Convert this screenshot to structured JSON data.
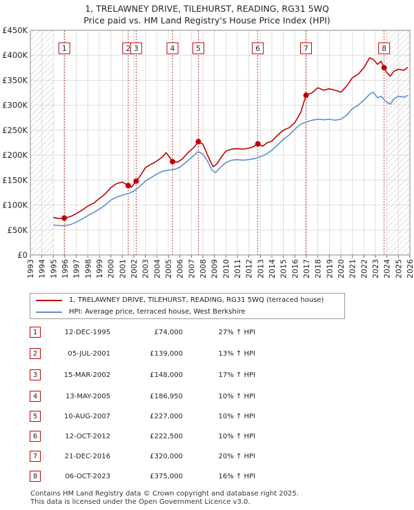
{
  "title": {
    "line1": "1, TRELAWNEY DRIVE, TILEHURST, READING, RG31 5WQ",
    "line2": "Price paid vs. HM Land Registry's House Price Index (HPI)"
  },
  "colors": {
    "property": "#c00000",
    "hpi": "#5b8fc9",
    "shade": "#e8eef6",
    "hatch": "#bbbbbb",
    "grid": "#dddddd"
  },
  "chart_data": {
    "type": "line",
    "x_range": [
      1993,
      2026
    ],
    "y_range": [
      0,
      450000
    ],
    "y_ticks": [
      0,
      50000,
      100000,
      150000,
      200000,
      250000,
      300000,
      350000,
      400000,
      450000
    ],
    "y_tick_labels": [
      "£0",
      "£50K",
      "£100K",
      "£150K",
      "£200K",
      "£250K",
      "£300K",
      "£350K",
      "£400K",
      "£450K"
    ],
    "x_tick_labels": [
      "1993",
      "1994",
      "1995",
      "1996",
      "1997",
      "1998",
      "1999",
      "2000",
      "2001",
      "2002",
      "2003",
      "2004",
      "2005",
      "2006",
      "2007",
      "2008",
      "2009",
      "2010",
      "2011",
      "2012",
      "2013",
      "2014",
      "2015",
      "2016",
      "2017",
      "2018",
      "2019",
      "2020",
      "2021",
      "2022",
      "2023",
      "2024",
      "2025",
      "2026"
    ],
    "hatched_before": 1995.0,
    "hatched_after": 2024.0,
    "series": [
      {
        "name": "1, TRELAWNEY DRIVE, TILEHURST, READING, RG31 5WQ (terraced house)",
        "color": "#c00000",
        "points": [
          [
            1995.0,
            75000
          ],
          [
            1995.5,
            73000
          ],
          [
            1995.95,
            74000
          ],
          [
            1996.5,
            77000
          ],
          [
            1997.0,
            83000
          ],
          [
            1997.5,
            90000
          ],
          [
            1998.0,
            98000
          ],
          [
            1998.5,
            104000
          ],
          [
            1999.0,
            113000
          ],
          [
            1999.5,
            122000
          ],
          [
            2000.0,
            135000
          ],
          [
            2000.5,
            143000
          ],
          [
            2001.0,
            146000
          ],
          [
            2001.5,
            140000
          ],
          [
            2001.8,
            136000
          ],
          [
            2002.2,
            148000
          ],
          [
            2002.6,
            160000
          ],
          [
            2003.0,
            175000
          ],
          [
            2003.5,
            182000
          ],
          [
            2004.0,
            188000
          ],
          [
            2004.5,
            197000
          ],
          [
            2004.8,
            205000
          ],
          [
            2005.1,
            196000
          ],
          [
            2005.36,
            187000
          ],
          [
            2005.8,
            186000
          ],
          [
            2006.2,
            192000
          ],
          [
            2006.7,
            205000
          ],
          [
            2007.2,
            215000
          ],
          [
            2007.61,
            227000
          ],
          [
            2008.0,
            222000
          ],
          [
            2008.3,
            206000
          ],
          [
            2008.6,
            190000
          ],
          [
            2008.9,
            177000
          ],
          [
            2009.2,
            182000
          ],
          [
            2009.6,
            196000
          ],
          [
            2010.0,
            208000
          ],
          [
            2010.5,
            212000
          ],
          [
            2011.0,
            213000
          ],
          [
            2011.5,
            212000
          ],
          [
            2012.0,
            214000
          ],
          [
            2012.3,
            216000
          ],
          [
            2012.78,
            222500
          ],
          [
            2013.2,
            218000
          ],
          [
            2013.6,
            225000
          ],
          [
            2014.0,
            228000
          ],
          [
            2014.5,
            240000
          ],
          [
            2015.0,
            250000
          ],
          [
            2015.5,
            255000
          ],
          [
            2016.0,
            265000
          ],
          [
            2016.5,
            285000
          ],
          [
            2016.97,
            320000
          ],
          [
            2017.5,
            325000
          ],
          [
            2018.0,
            335000
          ],
          [
            2018.5,
            330000
          ],
          [
            2019.0,
            333000
          ],
          [
            2019.5,
            330000
          ],
          [
            2020.0,
            326000
          ],
          [
            2020.5,
            338000
          ],
          [
            2021.0,
            355000
          ],
          [
            2021.5,
            362000
          ],
          [
            2022.0,
            375000
          ],
          [
            2022.5,
            395000
          ],
          [
            2022.8,
            392000
          ],
          [
            2023.2,
            382000
          ],
          [
            2023.5,
            388000
          ],
          [
            2023.76,
            375000
          ],
          [
            2024.0,
            365000
          ],
          [
            2024.3,
            358000
          ],
          [
            2024.6,
            368000
          ],
          [
            2025.0,
            372000
          ],
          [
            2025.5,
            370000
          ],
          [
            2025.8,
            376000
          ]
        ]
      },
      {
        "name": "HPI: Average price, terraced house, West Berkshire",
        "color": "#5b8fc9",
        "points": [
          [
            1995.0,
            60000
          ],
          [
            1995.5,
            59000
          ],
          [
            1996.0,
            58500
          ],
          [
            1996.5,
            61000
          ],
          [
            1997.0,
            66000
          ],
          [
            1997.5,
            72000
          ],
          [
            1998.0,
            79000
          ],
          [
            1998.5,
            85000
          ],
          [
            1999.0,
            92000
          ],
          [
            1999.5,
            100000
          ],
          [
            2000.0,
            110000
          ],
          [
            2000.5,
            116000
          ],
          [
            2001.0,
            120000
          ],
          [
            2001.5,
            123000
          ],
          [
            2002.0,
            128000
          ],
          [
            2002.5,
            137000
          ],
          [
            2003.0,
            148000
          ],
          [
            2003.5,
            155000
          ],
          [
            2004.0,
            162000
          ],
          [
            2004.5,
            168000
          ],
          [
            2005.0,
            170000
          ],
          [
            2005.5,
            171000
          ],
          [
            2006.0,
            176000
          ],
          [
            2006.5,
            185000
          ],
          [
            2007.0,
            195000
          ],
          [
            2007.6,
            207000
          ],
          [
            2008.0,
            202000
          ],
          [
            2008.4,
            188000
          ],
          [
            2008.8,
            170000
          ],
          [
            2009.1,
            165000
          ],
          [
            2009.5,
            175000
          ],
          [
            2010.0,
            185000
          ],
          [
            2010.5,
            190000
          ],
          [
            2011.0,
            191000
          ],
          [
            2011.5,
            190000
          ],
          [
            2012.0,
            191000
          ],
          [
            2012.5,
            193000
          ],
          [
            2013.0,
            197000
          ],
          [
            2013.5,
            202000
          ],
          [
            2014.0,
            210000
          ],
          [
            2014.5,
            220000
          ],
          [
            2015.0,
            232000
          ],
          [
            2015.5,
            240000
          ],
          [
            2016.0,
            252000
          ],
          [
            2016.5,
            262000
          ],
          [
            2017.0,
            266000
          ],
          [
            2017.5,
            270000
          ],
          [
            2018.0,
            272000
          ],
          [
            2018.5,
            271000
          ],
          [
            2019.0,
            272000
          ],
          [
            2019.5,
            270000
          ],
          [
            2020.0,
            272000
          ],
          [
            2020.5,
            280000
          ],
          [
            2021.0,
            293000
          ],
          [
            2021.5,
            300000
          ],
          [
            2022.0,
            310000
          ],
          [
            2022.5,
            322000
          ],
          [
            2022.8,
            326000
          ],
          [
            2023.2,
            315000
          ],
          [
            2023.5,
            318000
          ],
          [
            2023.8,
            310000
          ],
          [
            2024.0,
            306000
          ],
          [
            2024.3,
            302000
          ],
          [
            2024.6,
            312000
          ],
          [
            2025.0,
            318000
          ],
          [
            2025.5,
            316000
          ],
          [
            2025.8,
            320000
          ]
        ]
      }
    ],
    "sales": [
      {
        "num": "1",
        "x": 1995.95,
        "price": 74000
      },
      {
        "num": "2",
        "x": 2001.51,
        "price": 139000
      },
      {
        "num": "3",
        "x": 2002.2,
        "price": 148000
      },
      {
        "num": "4",
        "x": 2005.36,
        "price": 186950
      },
      {
        "num": "5",
        "x": 2007.61,
        "price": 227000
      },
      {
        "num": "6",
        "x": 2012.78,
        "price": 222500
      },
      {
        "num": "7",
        "x": 2016.97,
        "price": 320000
      },
      {
        "num": "8",
        "x": 2023.76,
        "price": 375000
      }
    ]
  },
  "legend": {
    "property_label": "1, TRELAWNEY DRIVE, TILEHURST, READING, RG31 5WQ (terraced house)",
    "hpi_label": "HPI: Average price, terraced house, West Berkshire"
  },
  "transactions": [
    {
      "num": "1",
      "date": "12-DEC-1995",
      "price": "£74,000",
      "hpi": "27% ↑ HPI"
    },
    {
      "num": "2",
      "date": "05-JUL-2001",
      "price": "£139,000",
      "hpi": "13% ↑ HPI"
    },
    {
      "num": "3",
      "date": "15-MAR-2002",
      "price": "£148,000",
      "hpi": "17% ↑ HPI"
    },
    {
      "num": "4",
      "date": "13-MAY-2005",
      "price": "£186,950",
      "hpi": "10% ↑ HPI"
    },
    {
      "num": "5",
      "date": "10-AUG-2007",
      "price": "£227,000",
      "hpi": "10% ↑ HPI"
    },
    {
      "num": "6",
      "date": "12-OCT-2012",
      "price": "£222,500",
      "hpi": "10% ↑ HPI"
    },
    {
      "num": "7",
      "date": "21-DEC-2016",
      "price": "£320,000",
      "hpi": "20% ↑ HPI"
    },
    {
      "num": "8",
      "date": "06-OCT-2023",
      "price": "£375,000",
      "hpi": "16% ↑ HPI"
    }
  ],
  "footer": {
    "line1": "Contains HM Land Registry data © Crown copyright and database right 2025.",
    "line2": "This data is licensed under the Open Government Licence v3.0."
  }
}
